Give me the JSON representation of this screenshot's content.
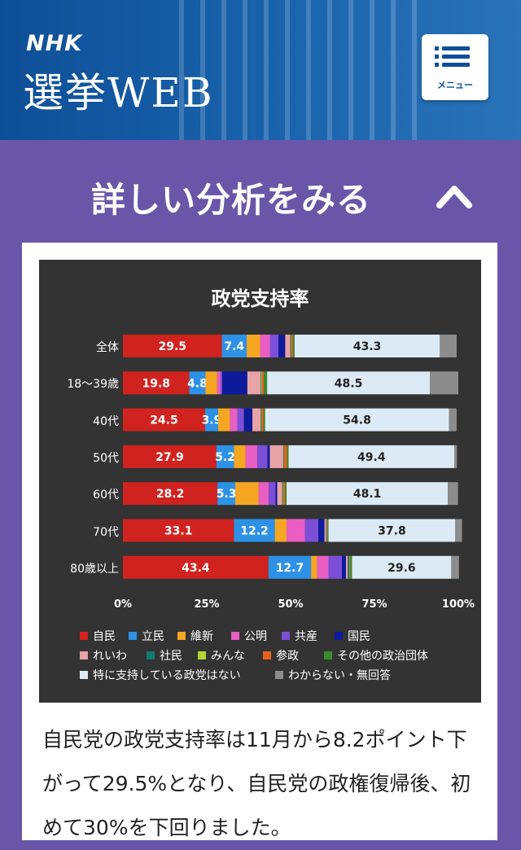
{
  "header": {
    "brand": "NHK",
    "title": "選挙WEB",
    "menu_label": "メニュー"
  },
  "panel": {
    "title": "詳しい分析をみる"
  },
  "chart_data": {
    "type": "bar",
    "orientation": "horizontal",
    "stacked": true,
    "title": "政党支持率",
    "categories": [
      "全体",
      "18〜39歳",
      "40代",
      "50代",
      "60代",
      "70代",
      "80歳以上"
    ],
    "xlim": [
      0,
      100
    ],
    "xticks": [
      "0%",
      "25%",
      "50%",
      "75%",
      "100%"
    ],
    "legend_position": "bottom",
    "series": [
      {
        "name": "自民",
        "color": "#d0231f",
        "values": [
          29.5,
          19.8,
          24.5,
          27.9,
          28.2,
          33.1,
          43.4
        ],
        "labeled": true
      },
      {
        "name": "立民",
        "color": "#2d91e6",
        "values": [
          7.4,
          4.8,
          3.9,
          5.2,
          5.3,
          12.2,
          12.7
        ],
        "labeled": true
      },
      {
        "name": "維新",
        "color": "#f5a623",
        "values": [
          4.0,
          3.5,
          3.5,
          3.5,
          7.0,
          3.5,
          1.8
        ]
      },
      {
        "name": "公明",
        "color": "#e85ec2",
        "values": [
          3.0,
          1.0,
          2.2,
          3.5,
          3.0,
          5.5,
          3.4
        ]
      },
      {
        "name": "共産",
        "color": "#7b4fd6",
        "values": [
          2.5,
          0.5,
          2.0,
          3.0,
          2.0,
          4.0,
          4.0
        ]
      },
      {
        "name": "国民",
        "color": "#0d1a99",
        "values": [
          2.0,
          7.5,
          2.5,
          0.7,
          0.5,
          1.8,
          1.2
        ]
      },
      {
        "name": "れいわ",
        "color": "#e8a3a7",
        "values": [
          1.5,
          4.0,
          2.5,
          4.0,
          1.5,
          0.5,
          0.5
        ]
      },
      {
        "name": "社民",
        "color": "#137a73",
        "values": [
          0.2,
          0.2,
          0.2,
          0.2,
          0.2,
          0.2,
          0.5
        ]
      },
      {
        "name": "みんな",
        "color": "#b4d433",
        "values": [
          0.1,
          0.2,
          0.1,
          0.1,
          0.1,
          0.1,
          0.1
        ]
      },
      {
        "name": "参政",
        "color": "#e8621b",
        "values": [
          0.5,
          0.5,
          0.5,
          0.8,
          0.5,
          0.2,
          0.2
        ]
      },
      {
        "name": "その他の政治団体",
        "color": "#3a8a2e",
        "values": [
          0.5,
          1.0,
          0.5,
          0.5,
          0.5,
          0.2,
          0.5
        ]
      },
      {
        "name": "特に支持している政党はない",
        "color": "#dceaf5",
        "values": [
          43.3,
          48.5,
          54.8,
          49.4,
          48.1,
          37.8,
          29.6
        ],
        "labeled": true
      },
      {
        "name": "わからない・無回答",
        "color": "#8c8c8c",
        "values": [
          5.0,
          8.5,
          2.3,
          0.8,
          3.0,
          2.0,
          2.3
        ]
      }
    ]
  },
  "paragraph": "自民党の政党支持率は11月から8.2ポイント下がって29.5%となり、自民党の政権復帰後、初めて30%を下回りました。"
}
